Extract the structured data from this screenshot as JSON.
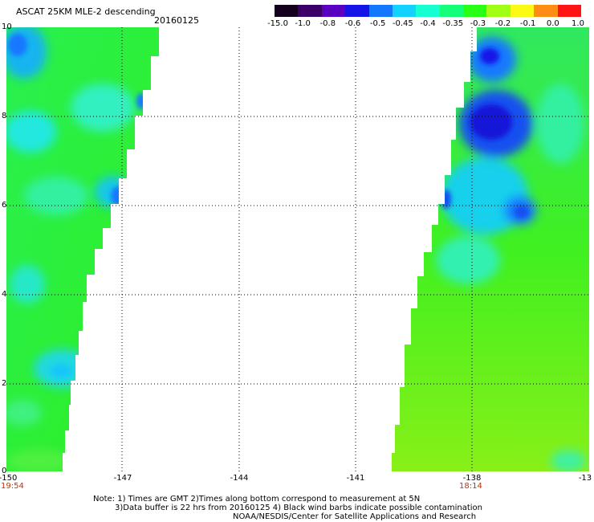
{
  "header": {
    "title": "ASCAT 25KM MLE-2 descending",
    "date": "20160125"
  },
  "colorbar": {
    "colors": [
      "#12001c",
      "#3a0068",
      "#5a00c0",
      "#1414e8",
      "#1478ff",
      "#14d2ff",
      "#14ffd2",
      "#14ff78",
      "#28ff14",
      "#a0ff14",
      "#fafa14",
      "#ff8c14",
      "#ff1414"
    ],
    "labels": [
      "-15.0",
      "-1.0",
      "-0.8",
      "-0.6",
      "-0.5",
      "-0.45",
      "-0.4",
      "-0.35",
      "-0.3",
      "-0.2",
      "-0.1",
      "0.0",
      "1.0"
    ]
  },
  "axes": {
    "y_ticks": [
      "10",
      "8",
      "6",
      "4",
      "2",
      "0"
    ],
    "x_ticks": [
      "-150",
      "-147",
      "-144",
      "-141",
      "-138",
      "-13"
    ]
  },
  "times": {
    "left": "19:54",
    "right": "18:14"
  },
  "notes": {
    "line1": "Note: 1) Times are GMT 2)Times along bottom correspond to measurement at 5N",
    "line2": "3)Data buffer is 22 hrs from 20160125 4) Black wind barbs indicate possible contamination",
    "line3": "NOAA/NESDIS/Center for Satellite Applications and Research"
  }
}
